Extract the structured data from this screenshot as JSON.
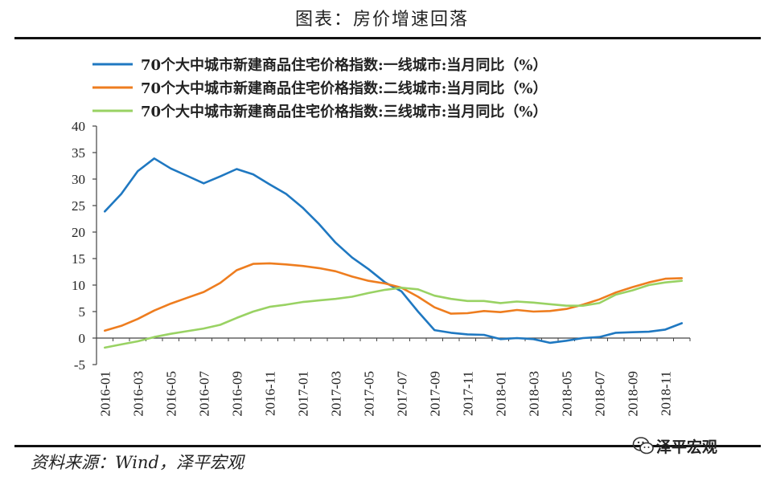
{
  "figure": {
    "title": "图表：房价增速回落",
    "source": "资料来源：Wind，泽平宏观",
    "brand": "泽平宏观",
    "brand_icon": "wechat-icon"
  },
  "chart_data": {
    "type": "line",
    "title": "",
    "xlabel": "",
    "ylabel": "",
    "ylim": [
      -5,
      40
    ],
    "yticks": [
      -5,
      0,
      5,
      10,
      15,
      20,
      25,
      30,
      35,
      40
    ],
    "grid": false,
    "legend_position": "top-left",
    "categories": [
      "2016-01",
      "2016-02",
      "2016-03",
      "2016-04",
      "2016-05",
      "2016-06",
      "2016-07",
      "2016-08",
      "2016-09",
      "2016-10",
      "2016-11",
      "2016-12",
      "2017-01",
      "2017-02",
      "2017-03",
      "2017-04",
      "2017-05",
      "2017-06",
      "2017-07",
      "2017-08",
      "2017-09",
      "2017-10",
      "2017-11",
      "2017-12",
      "2018-01",
      "2018-02",
      "2018-03",
      "2018-04",
      "2018-05",
      "2018-06",
      "2018-07",
      "2018-08",
      "2018-09",
      "2018-10",
      "2018-11",
      "2018-12"
    ],
    "tick_labels": [
      "2016-01",
      "2016-03",
      "2016-05",
      "2016-07",
      "2016-09",
      "2016-11",
      "2017-01",
      "2017-03",
      "2017-05",
      "2017-07",
      "2017-09",
      "2017-11",
      "2018-01",
      "2018-03",
      "2018-05",
      "2018-07",
      "2018-09",
      "2018-11"
    ],
    "series": [
      {
        "name": "70个大中城市新建商品住宅价格指数:一线城市:当月同比（%）",
        "color": "#1f78c1",
        "values": [
          23.9,
          27.2,
          31.5,
          33.9,
          32.0,
          30.6,
          29.2,
          30.5,
          31.9,
          30.9,
          29.0,
          27.2,
          24.6,
          21.5,
          18.0,
          15.2,
          13.0,
          10.5,
          8.8,
          5.0,
          1.5,
          1.0,
          0.7,
          0.6,
          -0.2,
          0.0,
          -0.2,
          -0.9,
          -0.5,
          0.0,
          0.2,
          1.0,
          1.1,
          1.2,
          1.6,
          2.8
        ]
      },
      {
        "name": "70个大中城市新建商品住宅价格指数:二线城市:当月同比（%）",
        "color": "#ee7d1f",
        "values": [
          1.4,
          2.3,
          3.6,
          5.2,
          6.5,
          7.6,
          8.7,
          10.4,
          12.8,
          14.0,
          14.1,
          13.9,
          13.6,
          13.2,
          12.6,
          11.6,
          10.8,
          10.3,
          9.5,
          7.8,
          5.8,
          4.6,
          4.7,
          5.1,
          4.9,
          5.3,
          5.0,
          5.1,
          5.5,
          6.3,
          7.3,
          8.6,
          9.6,
          10.5,
          11.2,
          11.3
        ]
      },
      {
        "name": "70个大中城市新建商品住宅价格指数:三线城市:当月同比（%）",
        "color": "#99d263",
        "values": [
          -1.8,
          -1.2,
          -0.6,
          0.2,
          0.8,
          1.3,
          1.8,
          2.5,
          3.8,
          5.0,
          5.9,
          6.3,
          6.8,
          7.1,
          7.4,
          7.8,
          8.5,
          9.1,
          9.5,
          9.2,
          8.0,
          7.4,
          7.0,
          7.0,
          6.6,
          6.9,
          6.7,
          6.4,
          6.1,
          6.1,
          6.6,
          8.2,
          9.0,
          10.0,
          10.5,
          10.8
        ]
      }
    ]
  }
}
